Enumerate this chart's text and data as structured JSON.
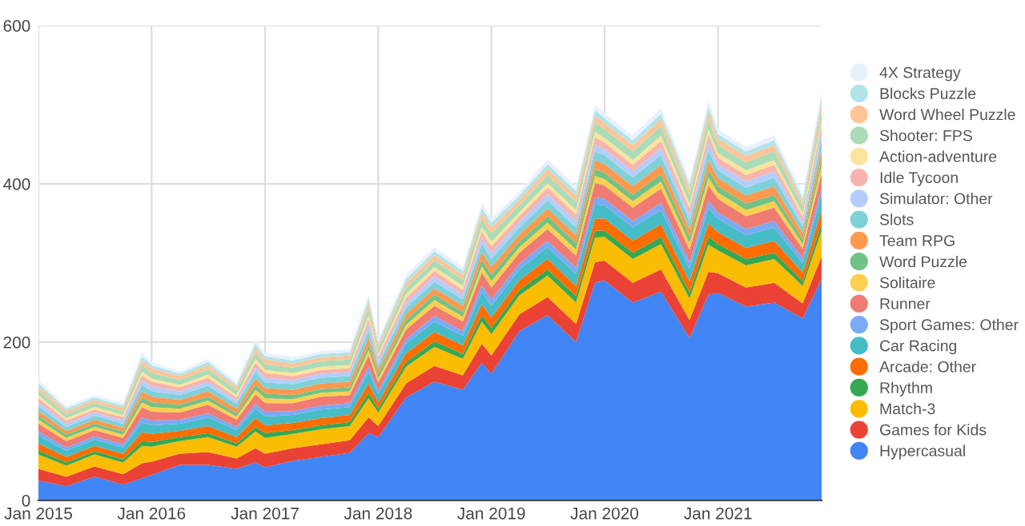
{
  "chart_data": {
    "type": "area",
    "stacked": true,
    "grid": true,
    "legend": "right",
    "x": [
      "2015-01",
      "2015-04",
      "2015-07",
      "2015-10",
      "2015-12",
      "2016-01",
      "2016-04",
      "2016-07",
      "2016-10",
      "2016-12",
      "2017-01",
      "2017-04",
      "2017-07",
      "2017-10",
      "2017-12",
      "2018-01",
      "2018-04",
      "2018-07",
      "2018-10",
      "2018-12",
      "2019-01",
      "2019-04",
      "2019-07",
      "2019-10",
      "2019-12",
      "2020-01",
      "2020-04",
      "2020-07",
      "2020-10",
      "2020-12",
      "2021-01",
      "2021-04",
      "2021-07",
      "2021-10",
      "2021-12"
    ],
    "xlim": [
      "2015-01",
      "2021-12"
    ],
    "xticks": [
      {
        "value": "2015-01",
        "label": "Jan 2015"
      },
      {
        "value": "2016-01",
        "label": "Jan 2016"
      },
      {
        "value": "2017-01",
        "label": "Jan 2017"
      },
      {
        "value": "2018-01",
        "label": "Jan 2018"
      },
      {
        "value": "2019-01",
        "label": "Jan 2019"
      },
      {
        "value": "2020-01",
        "label": "Jan 2020"
      },
      {
        "value": "2021-01",
        "label": "Jan 2021"
      }
    ],
    "ylim": [
      0,
      600
    ],
    "yticks": [
      0,
      200,
      400,
      600
    ],
    "series": [
      {
        "name": "Hypercasual",
        "color": "#4285f4",
        "values": [
          25,
          18,
          30,
          20,
          28,
          32,
          45,
          45,
          40,
          48,
          42,
          50,
          55,
          60,
          85,
          80,
          130,
          150,
          140,
          174,
          160,
          214,
          234,
          200,
          275,
          278,
          250,
          264,
          205,
          260,
          262,
          245,
          250,
          230,
          280
        ]
      },
      {
        "name": "Games for Kids",
        "color": "#ea4335",
        "values": [
          15,
          12,
          13,
          13,
          19,
          17,
          14,
          16,
          13,
          18,
          17,
          16,
          16,
          16,
          20,
          14,
          18,
          20,
          18,
          24,
          23,
          21,
          23,
          23,
          26,
          25,
          25,
          28,
          23,
          29,
          25,
          24,
          25,
          19,
          28
        ]
      },
      {
        "name": "Match-3",
        "color": "#fbbc04",
        "values": [
          18,
          14,
          15,
          15,
          22,
          19,
          16,
          19,
          15,
          21,
          20,
          18,
          19,
          18,
          24,
          17,
          21,
          24,
          21,
          28,
          27,
          24,
          27,
          27,
          31,
          30,
          30,
          32,
          27,
          34,
          29,
          28,
          30,
          22,
          33
        ]
      },
      {
        "name": "Rhythm",
        "color": "#34a853",
        "values": [
          5,
          4,
          4,
          4,
          6,
          6,
          5,
          5,
          4,
          6,
          6,
          5,
          5,
          5,
          7,
          5,
          6,
          7,
          6,
          8,
          8,
          7,
          8,
          8,
          9,
          8,
          8,
          9,
          8,
          10,
          8,
          8,
          8,
          6,
          9
        ]
      },
      {
        "name": "Arcade: Other",
        "color": "#ff6d01",
        "values": [
          9,
          7,
          7,
          7,
          11,
          10,
          8,
          9,
          8,
          11,
          10,
          9,
          9,
          9,
          12,
          8,
          11,
          12,
          11,
          14,
          13,
          12,
          13,
          13,
          15,
          15,
          15,
          16,
          14,
          17,
          15,
          14,
          15,
          11,
          17
        ]
      },
      {
        "name": "Car Racing",
        "color": "#46bdc6",
        "values": [
          10,
          8,
          8,
          8,
          13,
          11,
          9,
          11,
          9,
          12,
          11,
          10,
          11,
          10,
          14,
          10,
          12,
          13,
          12,
          16,
          15,
          14,
          15,
          15,
          18,
          17,
          17,
          18,
          16,
          19,
          17,
          16,
          17,
          12,
          19
        ]
      },
      {
        "name": "Sport Games: Other",
        "color": "#7baaf7",
        "values": [
          5,
          4,
          4,
          4,
          6,
          6,
          5,
          5,
          4,
          6,
          6,
          5,
          5,
          5,
          7,
          5,
          6,
          7,
          6,
          8,
          8,
          7,
          8,
          8,
          9,
          8,
          8,
          9,
          8,
          10,
          8,
          8,
          8,
          6,
          9
        ]
      },
      {
        "name": "Runner",
        "color": "#f07b72",
        "values": [
          10,
          8,
          8,
          8,
          13,
          11,
          9,
          11,
          9,
          12,
          11,
          10,
          11,
          10,
          14,
          10,
          12,
          13,
          12,
          16,
          15,
          14,
          15,
          15,
          18,
          17,
          17,
          18,
          16,
          19,
          17,
          16,
          17,
          12,
          19
        ]
      },
      {
        "name": "Solitaire",
        "color": "#fcd04f",
        "values": [
          5,
          4,
          4,
          4,
          6,
          6,
          5,
          5,
          4,
          6,
          6,
          5,
          5,
          5,
          7,
          5,
          6,
          7,
          6,
          8,
          8,
          7,
          8,
          8,
          9,
          8,
          8,
          9,
          8,
          10,
          8,
          8,
          8,
          6,
          9
        ]
      },
      {
        "name": "Word Puzzle",
        "color": "#71c287",
        "values": [
          5,
          4,
          4,
          4,
          6,
          6,
          5,
          5,
          4,
          6,
          6,
          5,
          5,
          5,
          7,
          5,
          6,
          7,
          6,
          8,
          8,
          7,
          8,
          8,
          9,
          8,
          8,
          9,
          8,
          10,
          8,
          8,
          8,
          6,
          9
        ]
      },
      {
        "name": "Team RPG",
        "color": "#ff994d",
        "values": [
          6,
          5,
          5,
          5,
          8,
          7,
          6,
          7,
          6,
          8,
          7,
          7,
          7,
          7,
          9,
          6,
          8,
          8,
          8,
          10,
          10,
          9,
          10,
          10,
          11,
          11,
          11,
          12,
          10,
          12,
          10,
          10,
          11,
          8,
          12
        ]
      },
      {
        "name": "Slots",
        "color": "#7ed1d7",
        "values": [
          6,
          5,
          5,
          5,
          8,
          7,
          6,
          7,
          6,
          8,
          7,
          7,
          7,
          7,
          9,
          6,
          8,
          8,
          8,
          10,
          10,
          9,
          10,
          10,
          11,
          11,
          11,
          12,
          10,
          12,
          10,
          10,
          11,
          8,
          12
        ]
      },
      {
        "name": "Simulator: Other",
        "color": "#b3cefb",
        "values": [
          5,
          4,
          4,
          4,
          6,
          6,
          5,
          5,
          4,
          6,
          6,
          5,
          5,
          5,
          7,
          5,
          6,
          7,
          6,
          8,
          8,
          7,
          8,
          8,
          9,
          8,
          8,
          9,
          8,
          10,
          8,
          8,
          8,
          6,
          9
        ]
      },
      {
        "name": "Idle Tycoon",
        "color": "#f7b4ae",
        "values": [
          5,
          4,
          4,
          4,
          6,
          6,
          5,
          5,
          4,
          6,
          6,
          5,
          5,
          5,
          7,
          5,
          6,
          7,
          6,
          8,
          8,
          7,
          8,
          8,
          9,
          8,
          8,
          9,
          8,
          10,
          8,
          8,
          8,
          6,
          9
        ]
      },
      {
        "name": "Action-adventure",
        "color": "#fde49b",
        "values": [
          4,
          3,
          3,
          3,
          5,
          4,
          3,
          4,
          3,
          5,
          4,
          4,
          4,
          4,
          5,
          4,
          5,
          5,
          5,
          6,
          6,
          5,
          6,
          6,
          7,
          6,
          6,
          7,
          6,
          7,
          6,
          6,
          6,
          5,
          7
        ]
      },
      {
        "name": "Shooter: FPS",
        "color": "#aadcb8",
        "values": [
          6,
          5,
          5,
          5,
          8,
          7,
          6,
          7,
          6,
          8,
          7,
          7,
          7,
          7,
          9,
          6,
          8,
          8,
          8,
          10,
          10,
          9,
          10,
          10,
          11,
          11,
          11,
          12,
          10,
          12,
          10,
          10,
          11,
          8,
          12
        ]
      },
      {
        "name": "Word Wheel Puzzle",
        "color": "#ffc599",
        "values": [
          5,
          4,
          4,
          4,
          6,
          6,
          5,
          5,
          4,
          6,
          6,
          5,
          5,
          5,
          7,
          5,
          6,
          7,
          6,
          8,
          8,
          7,
          8,
          8,
          9,
          8,
          8,
          9,
          8,
          10,
          8,
          8,
          8,
          6,
          9
        ]
      },
      {
        "name": "Blocks Puzzle",
        "color": "#b1e4e7",
        "values": [
          4,
          3,
          3,
          3,
          5,
          4,
          3,
          4,
          3,
          5,
          4,
          4,
          4,
          4,
          5,
          4,
          5,
          5,
          5,
          6,
          6,
          5,
          6,
          6,
          7,
          6,
          6,
          7,
          6,
          7,
          6,
          6,
          6,
          5,
          7
        ]
      },
      {
        "name": "4X Strategy",
        "color": "#e8f0fe",
        "values": [
          4,
          3,
          3,
          3,
          5,
          4,
          3,
          4,
          3,
          5,
          4,
          4,
          4,
          4,
          5,
          4,
          5,
          5,
          5,
          6,
          6,
          5,
          6,
          6,
          7,
          6,
          6,
          7,
          6,
          7,
          6,
          6,
          6,
          5,
          7
        ]
      }
    ]
  }
}
